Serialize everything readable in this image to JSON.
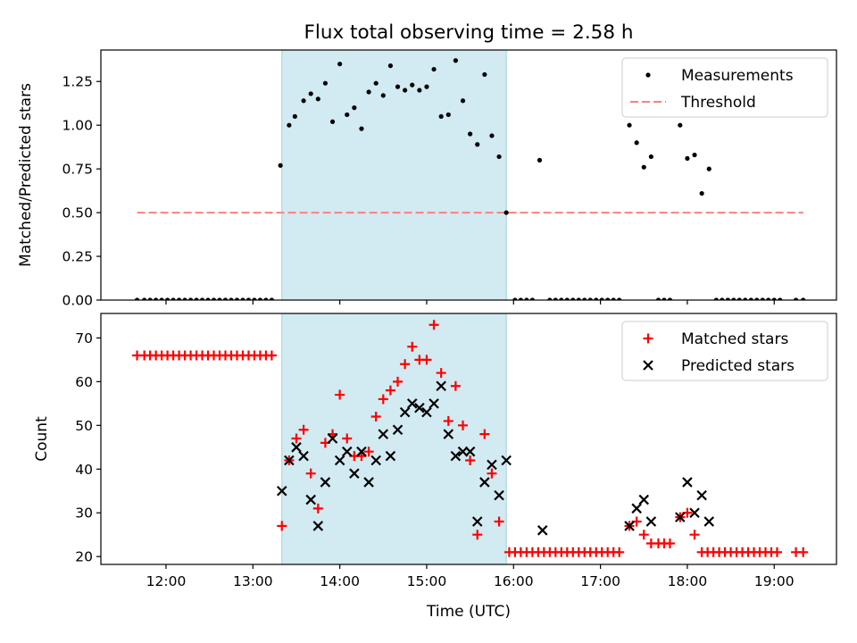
{
  "title": "Flux total observing time = 2.58 h",
  "xlabel": "Time (UTC)",
  "xticks": [
    "12:00",
    "13:00",
    "14:00",
    "15:00",
    "16:00",
    "17:00",
    "18:00",
    "19:00"
  ],
  "colors": {
    "measurements": "#000000",
    "threshold": "#ff7f7f",
    "matched": "#ff0000",
    "predicted": "#000000",
    "span": "#add8e6"
  },
  "chart_data": [
    {
      "type": "scatter",
      "ylabel": "Matched/Predicted stars",
      "ylim": [
        0,
        1.43
      ],
      "yticks": [
        "0.00",
        "0.25",
        "0.50",
        "0.75",
        "1.00",
        "1.25"
      ],
      "highlight_span": [
        "13:20",
        "15:55"
      ],
      "legend": {
        "placement": "top-right",
        "entries": [
          "Measurements",
          "Threshold"
        ]
      },
      "threshold": {
        "value": 0.5,
        "x_range": [
          "11:40",
          "19:20"
        ]
      },
      "series": [
        {
          "name": "Measurements",
          "points": [
            [
              "11:40",
              0
            ],
            [
              "11:45",
              0
            ],
            [
              "11:49",
              0
            ],
            [
              "11:53",
              0
            ],
            [
              "11:57",
              0
            ],
            [
              "12:01",
              0
            ],
            [
              "12:05",
              0
            ],
            [
              "12:09",
              0
            ],
            [
              "12:13",
              0
            ],
            [
              "12:17",
              0
            ],
            [
              "12:21",
              0
            ],
            [
              "12:25",
              0
            ],
            [
              "12:29",
              0
            ],
            [
              "12:33",
              0
            ],
            [
              "12:37",
              0
            ],
            [
              "12:41",
              0
            ],
            [
              "12:45",
              0
            ],
            [
              "12:49",
              0
            ],
            [
              "12:53",
              0
            ],
            [
              "12:57",
              0
            ],
            [
              "13:01",
              0
            ],
            [
              "13:05",
              0
            ],
            [
              "13:09",
              0
            ],
            [
              "13:13",
              0
            ],
            [
              "13:19",
              0.77
            ],
            [
              "13:25",
              1.0
            ],
            [
              "13:29",
              1.05
            ],
            [
              "13:35",
              1.14
            ],
            [
              "13:40",
              1.18
            ],
            [
              "13:45",
              1.15
            ],
            [
              "13:50",
              1.24
            ],
            [
              "13:55",
              1.02
            ],
            [
              "14:00",
              1.35
            ],
            [
              "14:05",
              1.06
            ],
            [
              "14:10",
              1.1
            ],
            [
              "14:15",
              0.98
            ],
            [
              "14:20",
              1.19
            ],
            [
              "14:25",
              1.24
            ],
            [
              "14:30",
              1.17
            ],
            [
              "14:35",
              1.34
            ],
            [
              "14:40",
              1.22
            ],
            [
              "14:45",
              1.2
            ],
            [
              "14:50",
              1.23
            ],
            [
              "14:55",
              1.2
            ],
            [
              "15:00",
              1.22
            ],
            [
              "15:05",
              1.32
            ],
            [
              "15:10",
              1.05
            ],
            [
              "15:15",
              1.06
            ],
            [
              "15:20",
              1.37
            ],
            [
              "15:25",
              1.14
            ],
            [
              "15:30",
              0.95
            ],
            [
              "15:35",
              0.89
            ],
            [
              "15:40",
              1.29
            ],
            [
              "15:45",
              0.94
            ],
            [
              "15:50",
              0.82
            ],
            [
              "15:55",
              0.5
            ],
            [
              "16:01",
              0
            ],
            [
              "16:05",
              0
            ],
            [
              "16:09",
              0
            ],
            [
              "16:13",
              0
            ],
            [
              "16:18",
              0.8
            ],
            [
              "16:25",
              0
            ],
            [
              "16:29",
              0
            ],
            [
              "16:33",
              0
            ],
            [
              "16:37",
              0
            ],
            [
              "16:41",
              0
            ],
            [
              "16:45",
              0
            ],
            [
              "16:49",
              0
            ],
            [
              "16:53",
              0
            ],
            [
              "16:57",
              0
            ],
            [
              "17:01",
              0
            ],
            [
              "17:05",
              0
            ],
            [
              "17:09",
              0
            ],
            [
              "17:13",
              0
            ],
            [
              "17:20",
              1.0
            ],
            [
              "17:25",
              0.9
            ],
            [
              "17:30",
              0.76
            ],
            [
              "17:35",
              0.82
            ],
            [
              "17:40",
              0
            ],
            [
              "17:44",
              0
            ],
            [
              "17:48",
              0
            ],
            [
              "17:55",
              1.0
            ],
            [
              "18:00",
              0.81
            ],
            [
              "18:05",
              0.83
            ],
            [
              "18:10",
              0.61
            ],
            [
              "18:15",
              0.75
            ],
            [
              "18:20",
              0
            ],
            [
              "18:24",
              0
            ],
            [
              "18:28",
              0
            ],
            [
              "18:32",
              0
            ],
            [
              "18:36",
              0
            ],
            [
              "18:40",
              0
            ],
            [
              "18:44",
              0
            ],
            [
              "18:48",
              0
            ],
            [
              "18:52",
              0
            ],
            [
              "18:56",
              0
            ],
            [
              "19:00",
              0
            ],
            [
              "19:04",
              0
            ],
            [
              "19:15",
              0
            ],
            [
              "19:20",
              0
            ]
          ]
        }
      ]
    },
    {
      "type": "scatter",
      "ylabel": "Count",
      "ylim": [
        18.2,
        75.6
      ],
      "yticks": [
        "20",
        "30",
        "40",
        "50",
        "60",
        "70"
      ],
      "highlight_span": [
        "13:20",
        "15:55"
      ],
      "legend": {
        "placement": "top-right",
        "entries": [
          "Matched stars",
          "Predicted stars"
        ]
      },
      "series": [
        {
          "name": "Matched stars",
          "marker": "+",
          "points": [
            [
              "11:40",
              66
            ],
            [
              "11:45",
              66
            ],
            [
              "11:49",
              66
            ],
            [
              "11:53",
              66
            ],
            [
              "11:57",
              66
            ],
            [
              "12:01",
              66
            ],
            [
              "12:05",
              66
            ],
            [
              "12:09",
              66
            ],
            [
              "12:13",
              66
            ],
            [
              "12:17",
              66
            ],
            [
              "12:21",
              66
            ],
            [
              "12:25",
              66
            ],
            [
              "12:29",
              66
            ],
            [
              "12:33",
              66
            ],
            [
              "12:37",
              66
            ],
            [
              "12:41",
              66
            ],
            [
              "12:45",
              66
            ],
            [
              "12:49",
              66
            ],
            [
              "12:53",
              66
            ],
            [
              "12:57",
              66
            ],
            [
              "13:01",
              66
            ],
            [
              "13:05",
              66
            ],
            [
              "13:09",
              66
            ],
            [
              "13:13",
              66
            ],
            [
              "13:20",
              27
            ],
            [
              "13:25",
              42
            ],
            [
              "13:30",
              47
            ],
            [
              "13:35",
              49
            ],
            [
              "13:40",
              39
            ],
            [
              "13:45",
              31
            ],
            [
              "13:50",
              46
            ],
            [
              "13:55",
              48
            ],
            [
              "14:00",
              57
            ],
            [
              "14:05",
              47
            ],
            [
              "14:10",
              43
            ],
            [
              "14:15",
              43
            ],
            [
              "14:20",
              44
            ],
            [
              "14:25",
              52
            ],
            [
              "14:30",
              56
            ],
            [
              "14:35",
              58
            ],
            [
              "14:40",
              60
            ],
            [
              "14:45",
              64
            ],
            [
              "14:50",
              68
            ],
            [
              "14:55",
              65
            ],
            [
              "15:00",
              65
            ],
            [
              "15:05",
              73
            ],
            [
              "15:10",
              62
            ],
            [
              "15:15",
              51
            ],
            [
              "15:20",
              59
            ],
            [
              "15:25",
              50
            ],
            [
              "15:30",
              42
            ],
            [
              "15:35",
              25
            ],
            [
              "15:40",
              48
            ],
            [
              "15:45",
              39
            ],
            [
              "15:50",
              28
            ],
            [
              "15:57",
              21
            ],
            [
              "16:01",
              21
            ],
            [
              "16:05",
              21
            ],
            [
              "16:09",
              21
            ],
            [
              "16:13",
              21
            ],
            [
              "16:17",
              21
            ],
            [
              "16:21",
              21
            ],
            [
              "16:25",
              21
            ],
            [
              "16:29",
              21
            ],
            [
              "16:33",
              21
            ],
            [
              "16:37",
              21
            ],
            [
              "16:41",
              21
            ],
            [
              "16:45",
              21
            ],
            [
              "16:49",
              21
            ],
            [
              "16:53",
              21
            ],
            [
              "16:57",
              21
            ],
            [
              "17:01",
              21
            ],
            [
              "17:05",
              21
            ],
            [
              "17:09",
              21
            ],
            [
              "17:13",
              21
            ],
            [
              "17:20",
              27
            ],
            [
              "17:25",
              28
            ],
            [
              "17:30",
              25
            ],
            [
              "17:35",
              23
            ],
            [
              "17:40",
              23
            ],
            [
              "17:44",
              23
            ],
            [
              "17:48",
              23
            ],
            [
              "17:55",
              29
            ],
            [
              "18:00",
              30
            ],
            [
              "18:05",
              25
            ],
            [
              "18:10",
              21
            ],
            [
              "18:14",
              21
            ],
            [
              "18:18",
              21
            ],
            [
              "18:22",
              21
            ],
            [
              "18:26",
              21
            ],
            [
              "18:30",
              21
            ],
            [
              "18:34",
              21
            ],
            [
              "18:38",
              21
            ],
            [
              "18:42",
              21
            ],
            [
              "18:46",
              21
            ],
            [
              "18:50",
              21
            ],
            [
              "18:54",
              21
            ],
            [
              "18:58",
              21
            ],
            [
              "19:02",
              21
            ],
            [
              "19:15",
              21
            ],
            [
              "19:20",
              21
            ]
          ]
        },
        {
          "name": "Predicted stars",
          "marker": "x",
          "points": [
            [
              "13:20",
              35
            ],
            [
              "13:25",
              42
            ],
            [
              "13:30",
              45
            ],
            [
              "13:35",
              43
            ],
            [
              "13:40",
              33
            ],
            [
              "13:45",
              27
            ],
            [
              "13:50",
              37
            ],
            [
              "13:55",
              47
            ],
            [
              "14:00",
              42
            ],
            [
              "14:05",
              44
            ],
            [
              "14:10",
              39
            ],
            [
              "14:15",
              44
            ],
            [
              "14:20",
              37
            ],
            [
              "14:25",
              42
            ],
            [
              "14:30",
              48
            ],
            [
              "14:35",
              43
            ],
            [
              "14:40",
              49
            ],
            [
              "14:45",
              53
            ],
            [
              "14:50",
              55
            ],
            [
              "14:55",
              54
            ],
            [
              "15:00",
              53
            ],
            [
              "15:05",
              55
            ],
            [
              "15:10",
              59
            ],
            [
              "15:15",
              48
            ],
            [
              "15:20",
              43
            ],
            [
              "15:25",
              44
            ],
            [
              "15:30",
              44
            ],
            [
              "15:35",
              28
            ],
            [
              "15:40",
              37
            ],
            [
              "15:45",
              41
            ],
            [
              "15:50",
              34
            ],
            [
              "15:55",
              42
            ],
            [
              "16:20",
              26
            ],
            [
              "17:20",
              27
            ],
            [
              "17:25",
              31
            ],
            [
              "17:30",
              33
            ],
            [
              "17:35",
              28
            ],
            [
              "17:55",
              29
            ],
            [
              "18:00",
              37
            ],
            [
              "18:05",
              30
            ],
            [
              "18:10",
              34
            ],
            [
              "18:15",
              28
            ]
          ]
        }
      ]
    }
  ]
}
